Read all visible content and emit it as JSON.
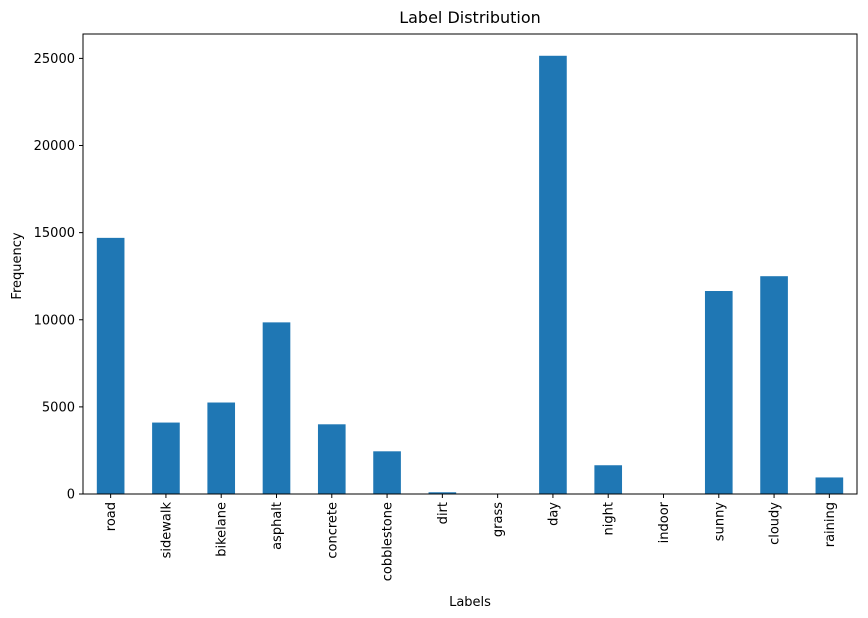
{
  "chart_data": {
    "type": "bar",
    "title": "Label Distribution",
    "xlabel": "Labels",
    "ylabel": "Frequency",
    "categories": [
      "road",
      "sidewalk",
      "bikelane",
      "asphalt",
      "concrete",
      "cobblestone",
      "dirt",
      "grass",
      "day",
      "night",
      "indoor",
      "sunny",
      "cloudy",
      "raining"
    ],
    "values": [
      14700,
      4100,
      5250,
      9850,
      4000,
      2450,
      100,
      0,
      25150,
      1650,
      0,
      11650,
      12500,
      950
    ],
    "ylim": [
      0,
      26400
    ],
    "yticks": [
      0,
      5000,
      10000,
      15000,
      20000,
      25000
    ],
    "bar_color": "#1f77b4",
    "grid": false,
    "legend": "none"
  }
}
